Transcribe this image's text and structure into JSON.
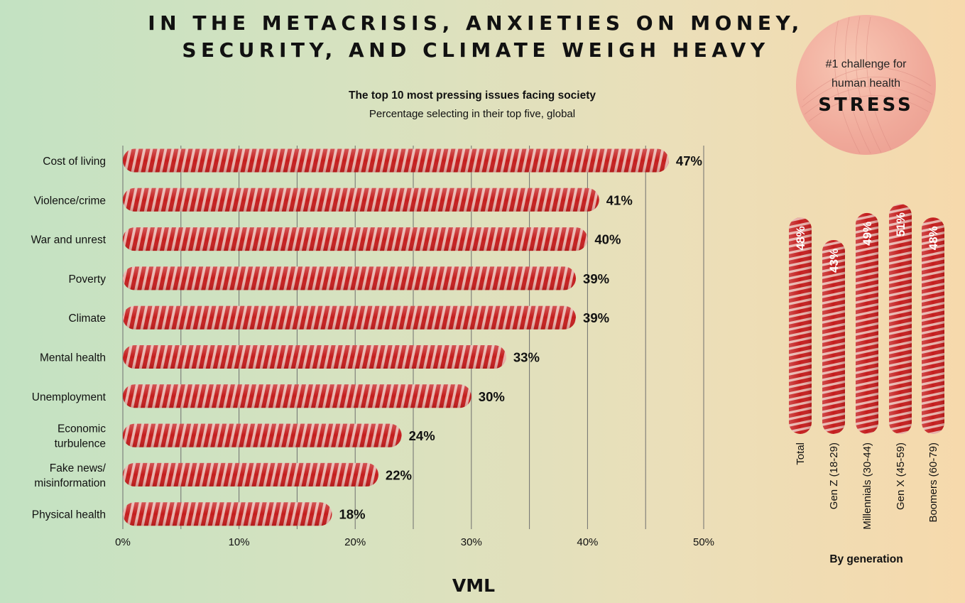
{
  "page": {
    "title": "IN THE METACRISIS, ANXIETIES ON MONEY, SECURITY, AND CLIMATE WEIGH HEAVY",
    "logo": "VML"
  },
  "colors": {
    "bar": "#c41d1d",
    "bar_light": "#e6a7a1",
    "grid": "#6e6e6e"
  },
  "badge": {
    "line1": "#1 challenge for",
    "line2": "human health",
    "headline": "STRESS"
  },
  "chart_data": [
    {
      "type": "bar",
      "orientation": "horizontal",
      "title": "The top 10 most pressing issues facing society",
      "subtitle": "Percentage selecting in their top five, global",
      "categories": [
        "Cost of living",
        "Violence/crime",
        "War and unrest",
        "Poverty",
        "Climate",
        "Mental health",
        "Unemployment",
        "Economic turbulence",
        "Fake news/ misinformation",
        "Physical health"
      ],
      "category_lines": [
        [
          "Cost of living"
        ],
        [
          "Violence/crime"
        ],
        [
          "War and unrest"
        ],
        [
          "Poverty"
        ],
        [
          "Climate"
        ],
        [
          "Mental health"
        ],
        [
          "Unemployment"
        ],
        [
          "Economic",
          "turbulence"
        ],
        [
          "Fake news/",
          "misinformation"
        ],
        [
          "Physical health"
        ]
      ],
      "values": [
        47,
        41,
        40,
        39,
        39,
        33,
        30,
        24,
        22,
        18
      ],
      "value_labels": [
        "47%",
        "41%",
        "40%",
        "39%",
        "39%",
        "33%",
        "30%",
        "24%",
        "22%",
        "18%"
      ],
      "xlim": [
        0,
        50
      ],
      "xticks": [
        0,
        10,
        20,
        30,
        40,
        50
      ],
      "xtick_labels": [
        "0%",
        "10%",
        "20%",
        "30%",
        "40%",
        "50%"
      ],
      "grid": true,
      "grid_step": 5
    },
    {
      "type": "bar",
      "orientation": "vertical",
      "title": "By generation",
      "categories": [
        "Total",
        "Gen Z (18-29)",
        "Millennials (30-44)",
        "Gen X (45-59)",
        "Boomers (60-79)"
      ],
      "values": [
        48,
        43,
        49,
        51,
        48
      ],
      "value_labels": [
        "48%",
        "43%",
        "49%",
        "51%",
        "48%"
      ]
    }
  ]
}
